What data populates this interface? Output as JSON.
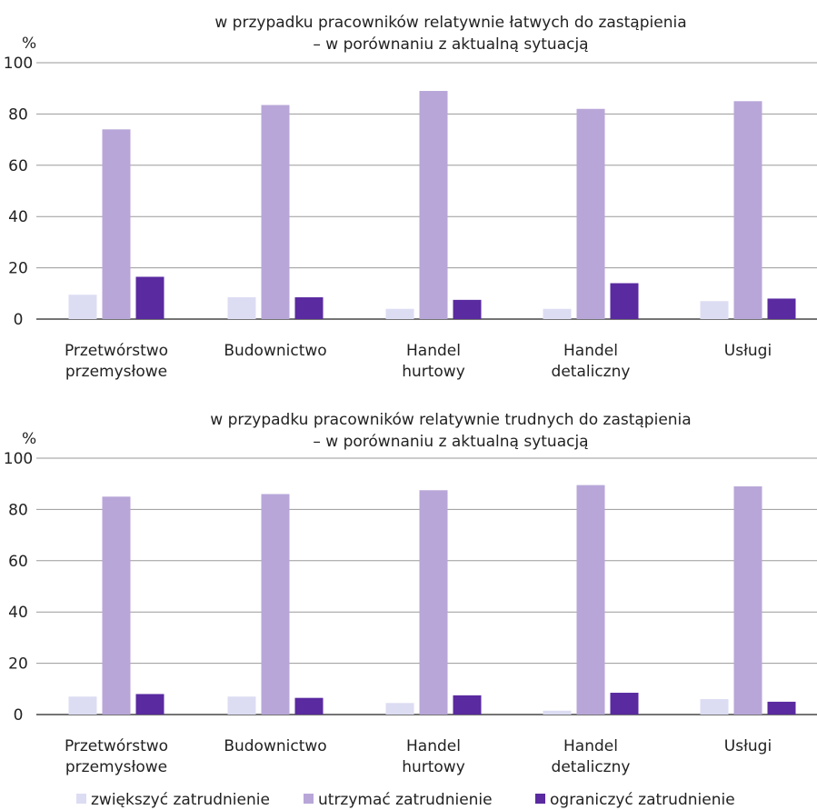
{
  "chart_data": [
    {
      "type": "bar",
      "title_line1": "w przypadku pracowników relatywnie łatwych do zastąpienia",
      "title_line2": "– w porównaniu z aktualną sytuacją",
      "ylabel": "%",
      "ylim": [
        0,
        100
      ],
      "yticks": [
        "0",
        "20",
        "40",
        "60",
        "80",
        "100"
      ],
      "grid": true,
      "categories": [
        [
          "Przetwórstwo",
          "przemysłowe"
        ],
        [
          "Budownictwo"
        ],
        [
          "Handel",
          "hurtowy"
        ],
        [
          "Handel",
          "detaliczny"
        ],
        [
          "Usługi"
        ]
      ],
      "series": [
        {
          "name": "zwiększyć zatrudnienie",
          "color": "#dcdcf3",
          "values": [
            9.5,
            8.5,
            4,
            4,
            7
          ]
        },
        {
          "name": "utrzymać zatrudnienie",
          "color": "#b8a6d8",
          "values": [
            74,
            83.5,
            89,
            82,
            85
          ]
        },
        {
          "name": "ograniczyć zatrudnienie",
          "color": "#5a2aa0",
          "values": [
            16.5,
            8.5,
            7.5,
            14,
            8
          ]
        }
      ]
    },
    {
      "type": "bar",
      "title_line1": "w przypadku pracowników relatywnie trudnych do zastąpienia",
      "title_line2": "– w porównaniu z aktualną sytuacją",
      "ylabel": "%",
      "ylim": [
        0,
        100
      ],
      "yticks": [
        "0",
        "20",
        "40",
        "60",
        "80",
        "100"
      ],
      "grid": true,
      "categories": [
        [
          "Przetwórstwo",
          "przemysłowe"
        ],
        [
          "Budownictwo"
        ],
        [
          "Handel",
          "hurtowy"
        ],
        [
          "Handel",
          "detaliczny"
        ],
        [
          "Usługi"
        ]
      ],
      "series": [
        {
          "name": "zwiększyć zatrudnienie",
          "color": "#dcdcf3",
          "values": [
            7,
            7,
            4.5,
            1.5,
            6
          ]
        },
        {
          "name": "utrzymać zatrudnienie",
          "color": "#b8a6d8",
          "values": [
            85,
            86,
            87.5,
            89.5,
            89
          ]
        },
        {
          "name": "ograniczyć zatrudnienie",
          "color": "#5a2aa0",
          "values": [
            8,
            6.5,
            7.5,
            8.5,
            5
          ]
        }
      ]
    }
  ],
  "legend": {
    "placement": "bottom",
    "items": [
      {
        "label": "zwiększyć zatrudnienie",
        "color": "#dcdcf3"
      },
      {
        "label": "utrzymać zatrudnienie",
        "color": "#b8a6d8"
      },
      {
        "label": "ograniczyć zatrudnienie",
        "color": "#5a2aa0"
      }
    ]
  }
}
